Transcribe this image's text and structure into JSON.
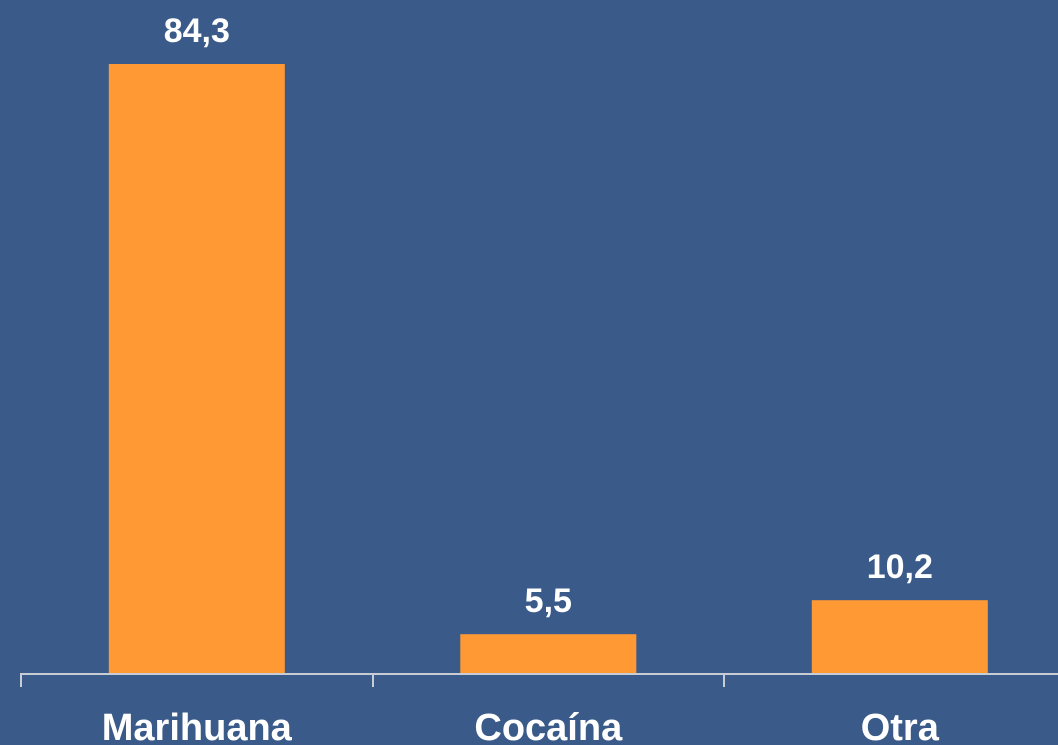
{
  "colors": {
    "background": "#3a5b8a",
    "bar": "#ff9933",
    "axis": "#c8ccd4",
    "text": "#ffffff"
  },
  "chart_data": {
    "type": "bar",
    "categories": [
      "Marihuana",
      "Cocaína",
      "Otra"
    ],
    "values": [
      84.3,
      5.5,
      10.2
    ],
    "value_labels": [
      "84,3",
      "5,5",
      "10,2"
    ],
    "title": "",
    "xlabel": "",
    "ylabel": "",
    "ylim": [
      0,
      84.3
    ],
    "grid": false,
    "legend": "none"
  }
}
